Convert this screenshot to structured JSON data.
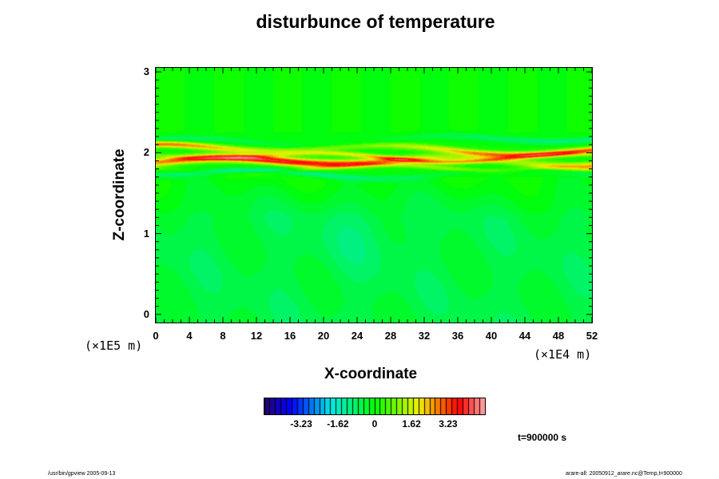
{
  "chart_data": {
    "type": "heatmap",
    "title": "disturbunce of temperature",
    "xlabel": "X-coordinate",
    "ylabel": "Z-coordinate",
    "x_unit": "(×1E4 m)",
    "y_unit": "(×1E5 m)",
    "xlim": [
      0,
      52
    ],
    "ylim": [
      -0.1,
      3.05
    ],
    "x_ticks": [
      "0",
      "4",
      "8",
      "12",
      "16",
      "20",
      "24",
      "28",
      "32",
      "36",
      "40",
      "44",
      "48",
      "52"
    ],
    "y_ticks": [
      "0",
      "1",
      "2",
      "3"
    ],
    "colorbar": {
      "ticks": [
        "-3.23",
        "-1.62",
        "0",
        "1.62",
        "3.23"
      ],
      "tick_values": [
        -3.23,
        -1.62,
        0,
        1.62,
        3.23
      ],
      "range": [
        -4.85,
        4.85
      ],
      "levels": 40
    },
    "annotation": "t=900000 s",
    "bands": [
      {
        "z": 1.88,
        "thickness": 0.05,
        "value": 4.0
      },
      {
        "z": 2.04,
        "thickness": 0.04,
        "value": 3.2
      },
      {
        "z": 1.96,
        "thickness": 0.03,
        "value": 2.2
      },
      {
        "z": 1.76,
        "thickness": 0.04,
        "value": -1.2
      },
      {
        "z": 2.16,
        "thickness": 0.04,
        "value": -1.0
      },
      {
        "z": 1.8,
        "thickness": 0.03,
        "value": 1.2
      }
    ]
  },
  "footer": {
    "left": "/usr/bin/gpview 2005-09-13",
    "right": "arare-all: 20050912_arare.nc@Temp,t=900000"
  }
}
